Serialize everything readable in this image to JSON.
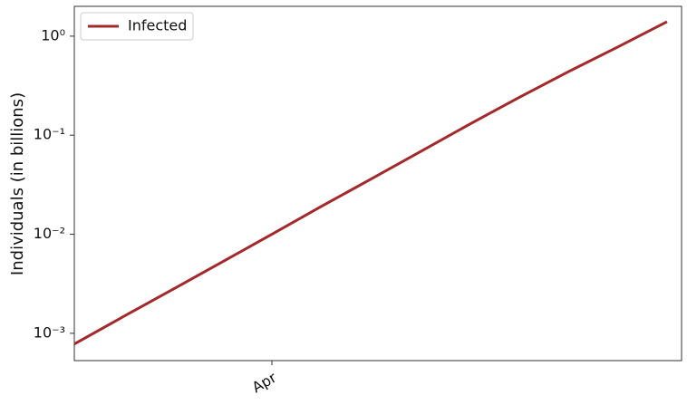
{
  "chart_data": {
    "type": "line",
    "ylabel": "Individuals (in billions)",
    "categories": [
      null,
      null,
      null,
      null,
      "Apr",
      null,
      null,
      null,
      null,
      null,
      null,
      null,
      null
    ],
    "series": [
      {
        "name": "Infected",
        "color": "#a3292b",
        "values": [
          0.00078,
          0.00148,
          0.00279,
          0.00527,
          0.01,
          0.0191,
          0.0359,
          0.0679,
          0.129,
          0.24,
          0.437,
          0.776,
          1.4
        ]
      }
    ],
    "ylim": [
      0.00053,
      2.0
    ],
    "ylog": true,
    "yticks": [
      {
        "value": 0.001,
        "label": "10⁻³"
      },
      {
        "value": 0.01,
        "label": "10⁻²"
      },
      {
        "value": 0.1,
        "label": "10⁻¹"
      },
      {
        "value": 1,
        "label": "10⁰"
      }
    ],
    "grid": false,
    "legend": "upper-left"
  }
}
